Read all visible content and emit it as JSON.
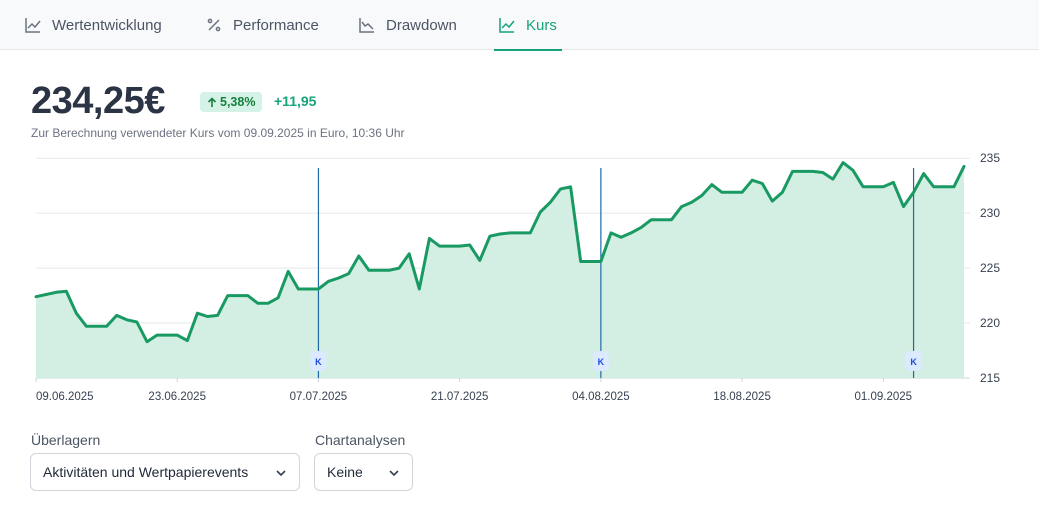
{
  "tabs": [
    {
      "label": "Wertentwicklung",
      "icon": "line-chart-icon"
    },
    {
      "label": "Performance",
      "icon": "percent-icon"
    },
    {
      "label": "Drawdown",
      "icon": "drawdown-chart-icon"
    },
    {
      "label": "Kurs",
      "icon": "line-chart-icon",
      "active": true
    }
  ],
  "header": {
    "price": "234,25€",
    "change_percent": "5,38%",
    "change_abs": "+11,95",
    "caption": "Zur Berechnung verwendeter Kurs vom 09.09.2025 in Euro, 10:36 Uhr"
  },
  "controls": {
    "overlay_label": "Überlagern",
    "overlay_value": "Aktivitäten und Wertpapierevents",
    "analysis_label": "Chartanalysen",
    "analysis_value": "Keine"
  },
  "colors": {
    "accent": "#16a37b",
    "line": "#1a9a63",
    "area": "#d3eee2",
    "marker": "#1e6aa8"
  },
  "chart_data": {
    "type": "area",
    "y_ticks": [
      235,
      230,
      225,
      220,
      215
    ],
    "ylim": [
      215,
      235.2
    ],
    "x_ticks": [
      "09.06.2025",
      "23.06.2025",
      "07.07.2025",
      "21.07.2025",
      "04.08.2025",
      "18.08.2025",
      "01.09.2025"
    ],
    "x_tick_dates": [
      "2025-06-09",
      "2025-06-23",
      "2025-07-07",
      "2025-07-21",
      "2025-08-04",
      "2025-08-18",
      "2025-09-01"
    ],
    "grid": true,
    "markers": [
      {
        "date": "2025-07-07",
        "label": "K"
      },
      {
        "date": "2025-08-04",
        "label": "K"
      },
      {
        "date": "2025-09-04",
        "label": "K"
      }
    ],
    "series": [
      {
        "x": [
          "2025-06-09",
          "2025-06-10",
          "2025-06-11",
          "2025-06-12",
          "2025-06-13",
          "2025-06-14",
          "2025-06-15",
          "2025-06-16",
          "2025-06-17",
          "2025-06-18",
          "2025-06-19",
          "2025-06-20",
          "2025-06-21",
          "2025-06-22",
          "2025-06-23",
          "2025-06-24",
          "2025-06-25",
          "2025-06-26",
          "2025-06-27",
          "2025-06-28",
          "2025-06-29",
          "2025-06-30",
          "2025-07-01",
          "2025-07-02",
          "2025-07-03",
          "2025-07-04",
          "2025-07-05",
          "2025-07-06",
          "2025-07-07",
          "2025-07-08",
          "2025-07-09",
          "2025-07-10",
          "2025-07-11",
          "2025-07-12",
          "2025-07-13",
          "2025-07-14",
          "2025-07-15",
          "2025-07-16",
          "2025-07-17",
          "2025-07-18",
          "2025-07-19",
          "2025-07-20",
          "2025-07-21",
          "2025-07-22",
          "2025-07-23",
          "2025-07-24",
          "2025-07-25",
          "2025-07-26",
          "2025-07-27",
          "2025-07-28",
          "2025-07-29",
          "2025-07-30",
          "2025-07-31",
          "2025-08-01",
          "2025-08-02",
          "2025-08-03",
          "2025-08-04",
          "2025-08-05",
          "2025-08-06",
          "2025-08-07",
          "2025-08-08",
          "2025-08-09",
          "2025-08-10",
          "2025-08-11",
          "2025-08-12",
          "2025-08-13",
          "2025-08-14",
          "2025-08-15",
          "2025-08-16",
          "2025-08-17",
          "2025-08-18",
          "2025-08-19",
          "2025-08-20",
          "2025-08-21",
          "2025-08-22",
          "2025-08-23",
          "2025-08-24",
          "2025-08-25",
          "2025-08-26",
          "2025-08-27",
          "2025-08-28",
          "2025-08-29",
          "2025-08-30",
          "2025-08-31",
          "2025-09-01",
          "2025-09-02",
          "2025-09-03",
          "2025-09-04",
          "2025-09-05",
          "2025-09-06",
          "2025-09-07",
          "2025-09-08",
          "2025-09-09"
        ],
        "values": [
          222.4,
          222.6,
          222.8,
          222.9,
          220.9,
          219.7,
          219.7,
          219.7,
          220.7,
          220.3,
          220.1,
          218.3,
          218.9,
          218.9,
          218.9,
          218.4,
          220.9,
          220.6,
          220.7,
          222.5,
          222.5,
          222.5,
          221.8,
          221.8,
          222.3,
          224.7,
          223.1,
          223.1,
          223.1,
          223.8,
          224.1,
          224.5,
          226.1,
          224.8,
          224.8,
          224.8,
          225.0,
          226.3,
          223.1,
          227.7,
          227.0,
          227.0,
          227.0,
          227.1,
          225.7,
          227.9,
          228.1,
          228.2,
          228.2,
          228.2,
          230.1,
          231.0,
          232.2,
          232.4,
          225.6,
          225.6,
          225.6,
          228.2,
          227.8,
          228.2,
          228.7,
          229.4,
          229.4,
          229.4,
          230.6,
          231.0,
          231.6,
          232.6,
          231.9,
          231.9,
          231.9,
          233.0,
          232.7,
          231.1,
          231.9,
          233.8,
          233.8,
          233.8,
          233.7,
          233.1,
          234.6,
          233.9,
          232.4,
          232.4,
          232.4,
          232.8,
          230.6,
          231.9,
          233.6,
          232.4,
          232.4,
          232.4,
          234.25
        ]
      }
    ]
  }
}
